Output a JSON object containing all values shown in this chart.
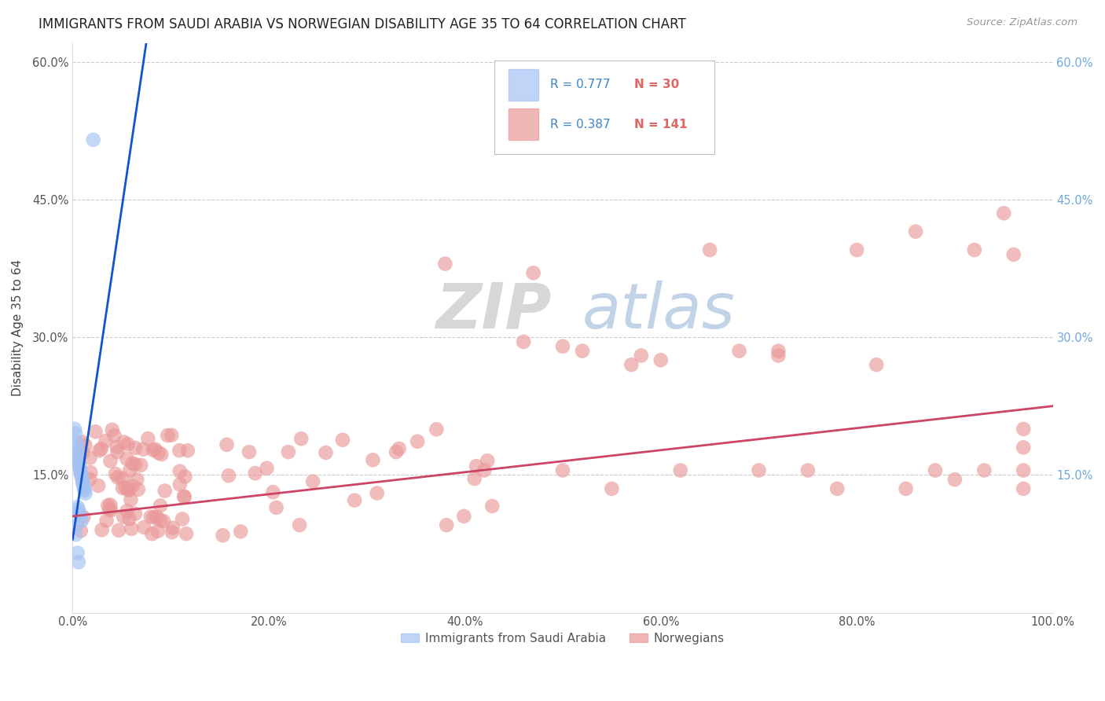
{
  "title": "IMMIGRANTS FROM SAUDI ARABIA VS NORWEGIAN DISABILITY AGE 35 TO 64 CORRELATION CHART",
  "source": "Source: ZipAtlas.com",
  "ylabel": "Disability Age 35 to 64",
  "xlim": [
    0.0,
    1.0
  ],
  "ylim": [
    0.0,
    0.62
  ],
  "xticks": [
    0.0,
    0.2,
    0.4,
    0.6,
    0.8,
    1.0
  ],
  "xticklabels": [
    "0.0%",
    "20.0%",
    "40.0%",
    "60.0%",
    "80.0%",
    "100.0%"
  ],
  "yticks": [
    0.0,
    0.15,
    0.3,
    0.45,
    0.6
  ],
  "yticklabels_left": [
    "",
    "15.0%",
    "30.0%",
    "45.0%",
    "60.0%"
  ],
  "yticklabels_right": [
    "",
    "15.0%",
    "30.0%",
    "45.0%",
    "60.0%"
  ],
  "legend1_label": "Immigrants from Saudi Arabia",
  "legend2_label": "Norwegians",
  "blue_color": "#a4c2f4",
  "pink_color": "#ea9999",
  "blue_line_color": "#1155cc",
  "pink_line_color": "#cc4466",
  "right_tick_color": "#6fa8dc",
  "watermark_zip": "ZIP",
  "watermark_atlas": "atlas",
  "legend_r1": "R = 0.777",
  "legend_n1": "N = 30",
  "legend_r2": "R = 0.387",
  "legend_n2": "N = 141",
  "blue_line_x0": 0.0,
  "blue_line_y0": 0.08,
  "blue_line_x1": 0.075,
  "blue_line_y1": 0.62,
  "pink_line_x0": 0.0,
  "pink_line_y0": 0.105,
  "pink_line_x1": 1.0,
  "pink_line_y1": 0.225
}
